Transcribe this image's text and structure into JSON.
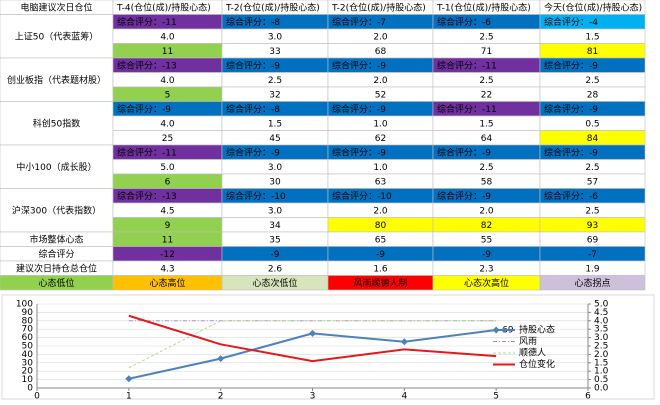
{
  "table": {
    "header": [
      "电脑建议次日仓位",
      "T-4(仓位(成)/持股心态)",
      "T-2(仓位(成)/持股心态)",
      "T-2(仓位(成)/持股心态)",
      "T-1(仓位(成)/持股心态)",
      "今天(仓位(成)/持股心态)"
    ],
    "groups": [
      {
        "label": "上证50（代表蓝筹）",
        "score": [
          "综合评分：-11",
          "综合评分：-8",
          "综合评分：-7",
          "综合评分：-6",
          "综合评分：-4"
        ],
        "position": [
          "4.0",
          "3.0",
          "2.0",
          "2.5",
          "1.5"
        ],
        "mood": [
          "11",
          "33",
          "68",
          "71",
          "81"
        ]
      },
      {
        "label": "创业板指（代表题材股）",
        "score": [
          "综合评分：-13",
          "综合评分：-9",
          "综合评分：-9",
          "综合评分：-11",
          "综合评分：-9"
        ],
        "position": [
          "4.0",
          "2.5",
          "2.0",
          "2.5",
          "2.5"
        ],
        "mood": [
          "5",
          "32",
          "52",
          "22",
          "28"
        ]
      },
      {
        "label": "科创50指数",
        "score": [
          "综合评分：-9",
          "综合评分：-8",
          "综合评分：-9",
          "综合评分：-11",
          "综合评分：-9"
        ],
        "position": [
          "4.0",
          "1.5",
          "1.0",
          "1.5",
          "0.5"
        ],
        "mood": [
          "25",
          "45",
          "62",
          "64",
          "84"
        ]
      },
      {
        "label": "中小100（成长股）",
        "score": [
          "综合评分：-11",
          "综合评分：-9",
          "综合评分：-9",
          "综合评分：-9",
          "综合评分：-9"
        ],
        "position": [
          "5.0",
          "3.0",
          "1.0",
          "2.5",
          "2.5"
        ],
        "mood": [
          "6",
          "30",
          "63",
          "58",
          "57"
        ]
      },
      {
        "label": "沪深300（代表指数）",
        "score": [
          "综合评分：-13",
          "综合评分：-10",
          "综合评分：-10",
          "综合评分：-9",
          "综合评分：-6"
        ],
        "position": [
          "4.5",
          "3.0",
          "2.0",
          "2.0",
          "2.5"
        ],
        "mood": [
          "9",
          "34",
          "80",
          "82",
          "93"
        ]
      }
    ],
    "summary": [
      {
        "label": "市场整体心态",
        "values": [
          "11",
          "35",
          "65",
          "55",
          "69"
        ]
      },
      {
        "label": "综合评分",
        "values": [
          "-12",
          "-9",
          "-9",
          "-9",
          "-7"
        ]
      },
      {
        "label": "建议次日持仓总仓位",
        "values": [
          "4.3",
          "2.6",
          "1.6",
          "2.3",
          "1.9"
        ]
      }
    ],
    "footer": [
      "心态低位",
      "心态高位",
      "心态次低位",
      "风雨顺德人制",
      "心态次高位",
      "心态拐点"
    ]
  },
  "chart_data": {
    "type": "line",
    "x": [
      1,
      2,
      3,
      4,
      5
    ],
    "xlim": [
      0,
      6
    ],
    "xticks": [
      0,
      1,
      2,
      3,
      4,
      5,
      6
    ],
    "ylim": [
      0,
      100
    ],
    "yticks": [
      0,
      10,
      20,
      30,
      40,
      50,
      60,
      70,
      80,
      90,
      100
    ],
    "y2lim": [
      0,
      5
    ],
    "y2ticks": [
      {
        "value": 0,
        "label": "0.0"
      },
      {
        "value": 0.5,
        "label": "0.5"
      },
      {
        "value": 1,
        "label": "1.0"
      },
      {
        "value": 1.5,
        "label": "1.5"
      },
      {
        "value": 2,
        "label": "2.0"
      },
      {
        "value": 2.5,
        "label": "2.5"
      },
      {
        "value": 3,
        "label": "3.0"
      },
      {
        "value": 3.5,
        "label": "3.5"
      },
      {
        "value": 4,
        "label": "4.0"
      },
      {
        "value": 4.5,
        "label": "4.5"
      },
      {
        "value": 5,
        "label": "5.0"
      }
    ],
    "grid": true,
    "series": [
      {
        "name": "持股心态",
        "color": "#4f81bd",
        "values": [
          11,
          35,
          65,
          55,
          69
        ],
        "value_labels": [
          null,
          null,
          null,
          null,
          "69"
        ]
      },
      {
        "name": "风雨",
        "color": "#b48ac8",
        "axis": "y2",
        "values": [
          4.0,
          4.0,
          4.0,
          4.0,
          4.0
        ]
      },
      {
        "name": "顺德人",
        "color": "#b5d99c",
        "axis": "y2",
        "values": [
          1.2,
          4.0,
          4.0,
          4.0,
          4.0
        ]
      },
      {
        "name": "仓位变化",
        "color": "#e31a1c",
        "axis": "y2",
        "values": [
          4.3,
          2.6,
          1.6,
          2.3,
          1.9
        ]
      }
    ]
  }
}
